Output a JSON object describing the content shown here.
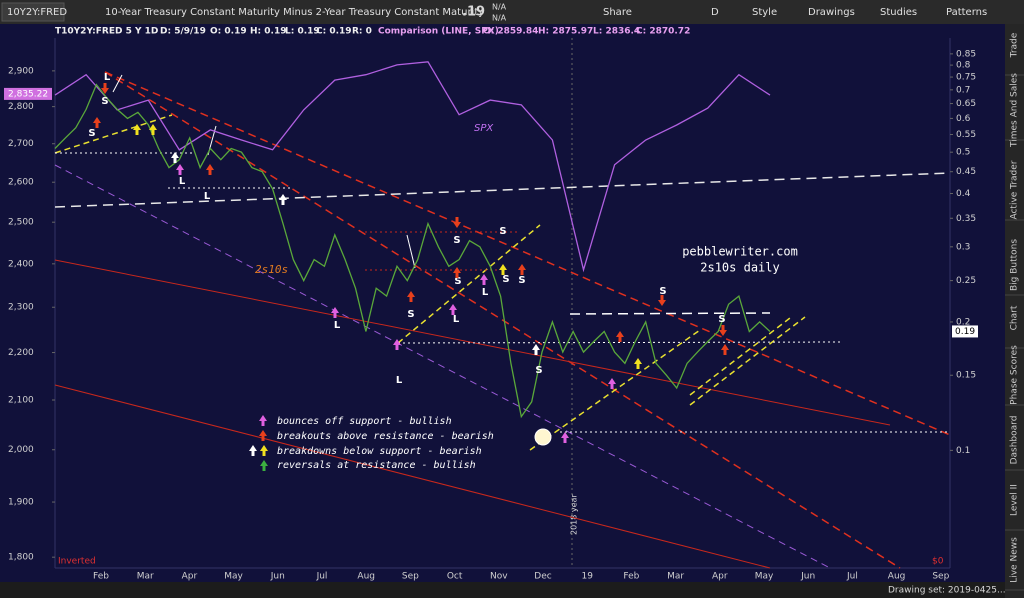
{
  "toolbar": {
    "symbol": "10Y2Y:FRED",
    "description": "10-Year Treasury Constant Maturity Minus 2-Year Treasury Constant Maturity",
    "last": ".19",
    "change": "N/A",
    "change_pct": "N/A",
    "buttons": [
      "Share",
      "D",
      "Style",
      "Drawings",
      "Studies",
      "Patterns"
    ]
  },
  "header": [
    "T10Y2Y:FRED 5 Y 1D",
    "D: 5/9/19",
    "O: 0.19",
    "H: 0.19",
    "L: 0.19",
    "C: 0.19",
    "R: 0",
    "Comparison (LINE, SPX)",
    "O: 2859.84",
    "H: 2875.97",
    "L: 2836.4",
    "C: 2870.72"
  ],
  "chart_data": {
    "type": "line",
    "log_scale": true,
    "x_labels": [
      "Feb",
      "Mar",
      "Apr",
      "May",
      "Jun",
      "Jul",
      "Aug",
      "Sep",
      "Oct",
      "Nov",
      "Dec",
      "19",
      "Feb",
      "Mar",
      "Apr",
      "May",
      "Jun",
      "Jul",
      "Aug",
      "Sep"
    ],
    "ylim": [
      1781,
      2995
    ],
    "yticks": [
      {
        "value": 1800,
        "label": "1,800"
      },
      {
        "value": 1900,
        "label": "1,900"
      },
      {
        "value": 2000,
        "label": "2,000"
      },
      {
        "value": 2100,
        "label": "2,100"
      },
      {
        "value": 2200,
        "label": "2,200"
      },
      {
        "value": 2300,
        "label": "2,300"
      },
      {
        "value": 2400,
        "label": "2,400"
      },
      {
        "value": 2500,
        "label": "2,500"
      },
      {
        "value": 2600,
        "label": "2,600"
      },
      {
        "value": 2700,
        "label": "2,700"
      },
      {
        "value": 2800,
        "label": "2,800"
      },
      {
        "value": 2900,
        "label": "2,900"
      }
    ],
    "y2lim": [
      0.053,
      0.926
    ],
    "y2ticks": [
      0.1,
      0.15,
      0.2,
      0.25,
      0.3,
      0.35,
      0.4,
      0.45,
      0.5,
      0.55,
      0.6,
      0.65,
      0.7,
      0.75,
      0.8,
      0.85
    ],
    "series": [
      {
        "name": "SPX",
        "color": "#b060e0",
        "values": [
          2832,
          2889,
          2791,
          2818,
          2684,
          2737,
          2710,
          2684,
          2791,
          2874,
          2889,
          2917,
          2926,
          2778,
          2818,
          2805,
          2710,
          2386,
          2645,
          2710,
          2750,
          2796,
          2889,
          2832
        ]
      },
      {
        "name": "2s10s",
        "axis": "y2",
        "color": "#5aa83a",
        "values": [
          0.51,
          0.54,
          0.57,
          0.63,
          0.72,
          0.67,
          0.63,
          0.6,
          0.62,
          0.58,
          0.51,
          0.46,
          0.48,
          0.54,
          0.46,
          0.51,
          0.48,
          0.51,
          0.5,
          0.46,
          0.45,
          0.41,
          0.34,
          0.28,
          0.25,
          0.28,
          0.27,
          0.32,
          0.28,
          0.24,
          0.19,
          0.24,
          0.23,
          0.27,
          0.25,
          0.28,
          0.34,
          0.3,
          0.27,
          0.28,
          0.31,
          0.3,
          0.27,
          0.23,
          0.16,
          0.12,
          0.13,
          0.17,
          0.2,
          0.17,
          0.19,
          0.17,
          0.18,
          0.19,
          0.17,
          0.16,
          0.18,
          0.2,
          0.16,
          0.15,
          0.14,
          0.16,
          0.17,
          0.18,
          0.19,
          0.22,
          0.23,
          0.19,
          0.2,
          0.19
        ]
      }
    ],
    "last_labels": {
      "y": {
        "value": 2835.22,
        "label": "2,835.22"
      },
      "y2": 0.19
    },
    "inverted": "Inverted",
    "zero": "$0",
    "year_marker": "2018 year"
  },
  "annotations": {
    "signals": [
      "L",
      "S",
      "S",
      "L",
      "L",
      "L",
      "L",
      "S",
      "S",
      "L",
      "S",
      "L",
      "S",
      "S",
      "S",
      "S",
      "S",
      "S"
    ],
    "site": "pebblewriter.com",
    "subtitle": "2s10s daily",
    "legend": [
      "bounces off support - bullish",
      "breakouts above resistance - bearish",
      "breakdowns below support - bearish",
      "reversals at resistance - bullish"
    ]
  },
  "side_tabs": [
    "Trade",
    "Times And Sales",
    "Active Trader",
    "Big Buttons",
    "Chart",
    "Phase Scores",
    "Dashboard",
    "Level II",
    "Live News"
  ],
  "status": "Drawing set: 2019-0425..."
}
